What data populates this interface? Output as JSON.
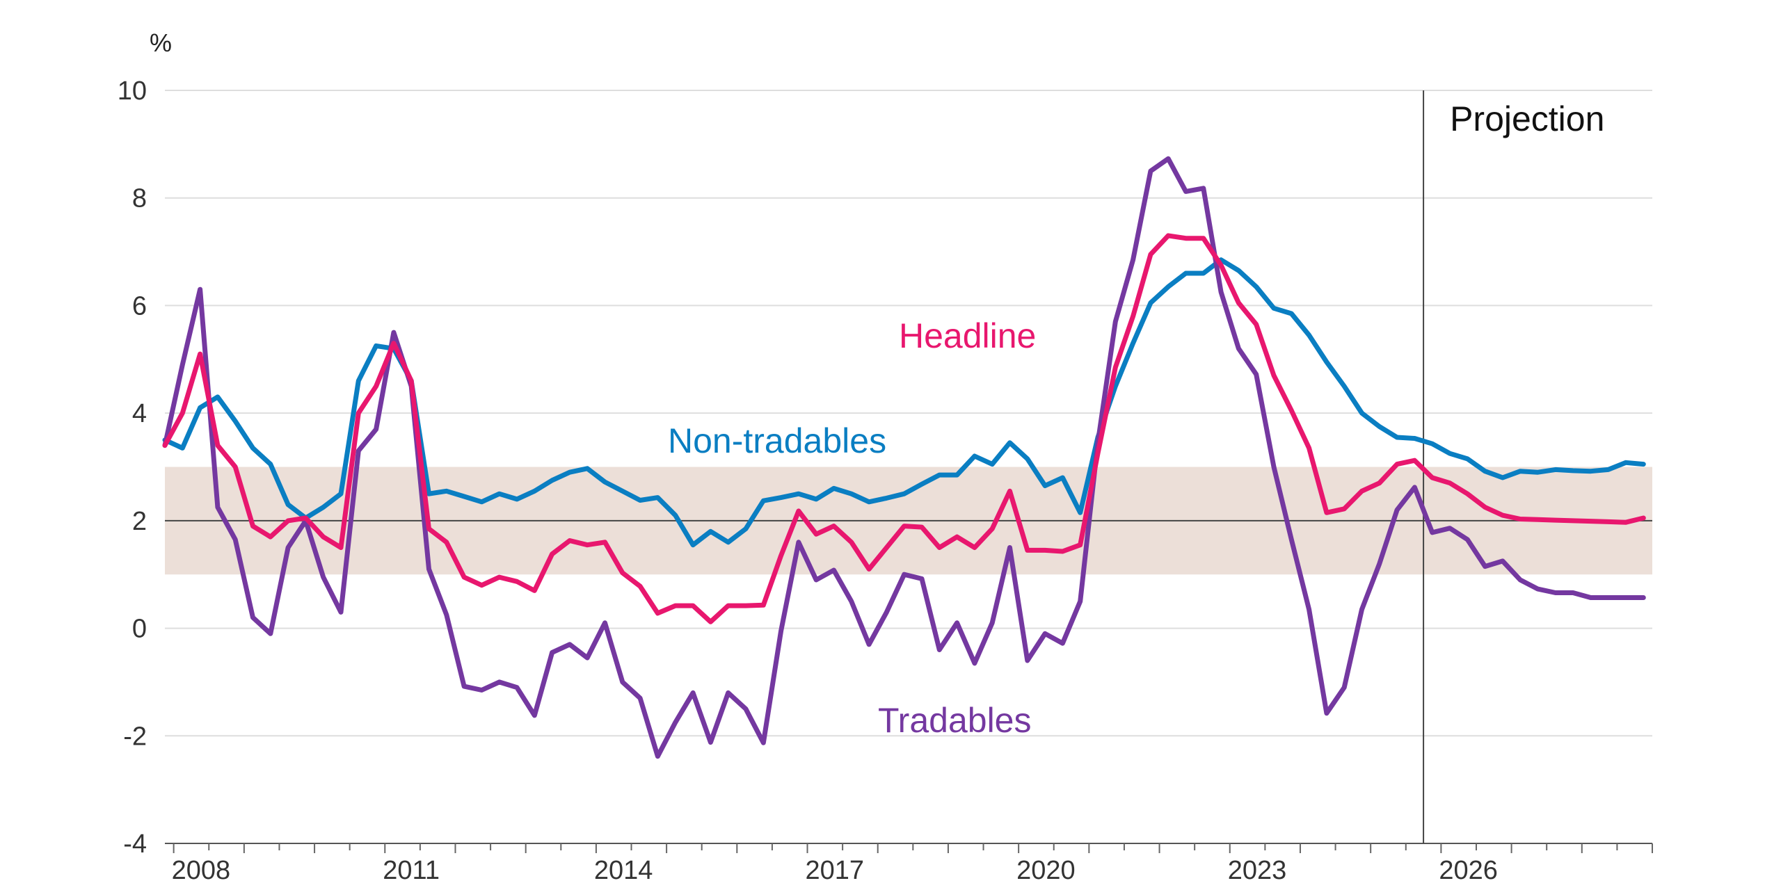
{
  "chart_data": {
    "type": "line",
    "title": "",
    "xlabel": "",
    "ylabel": "%",
    "ylim": [
      -4,
      10
    ],
    "yticks": [
      10,
      8,
      6,
      4,
      2,
      0,
      -2,
      -4
    ],
    "xlim": [
      2007.875,
      2029.0
    ],
    "xticks": [
      {
        "value": 2008.0,
        "label": "2008"
      },
      {
        "value": 2011.0,
        "label": "2011"
      },
      {
        "value": 2014.0,
        "label": "2014"
      },
      {
        "value": 2017.0,
        "label": "2017"
      },
      {
        "value": 2020.0,
        "label": "2020"
      },
      {
        "value": 2023.0,
        "label": "2023"
      },
      {
        "value": 2026.0,
        "label": "2026"
      }
    ],
    "target_band": {
      "low": 1,
      "high": 3,
      "color": "#ecdfd8"
    },
    "reference_line": 2,
    "projection": {
      "start": 2025.75,
      "label": "Projection"
    },
    "grid": "horizontal",
    "series": [
      {
        "name": "Non-tradables",
        "color": "#0a7ec2",
        "label_pos": {
          "x": 2017.0,
          "y": 3.5
        },
        "values": [
          3.5,
          3.35,
          4.1,
          4.3,
          3.85,
          3.35,
          3.05,
          2.3,
          2.05,
          2.25,
          2.5,
          4.6,
          5.25,
          5.2,
          4.6,
          2.5,
          2.55,
          2.45,
          2.35,
          2.5,
          2.4,
          2.55,
          2.75,
          2.9,
          2.97,
          2.72,
          2.55,
          2.38,
          2.43,
          2.1,
          1.55,
          1.8,
          1.6,
          1.85,
          2.37,
          2.43,
          2.5,
          2.4,
          2.6,
          2.5,
          2.35,
          2.42,
          2.5,
          2.68,
          2.85,
          2.85,
          3.2,
          3.05,
          3.45,
          3.15,
          2.65,
          2.8,
          2.15,
          3.55,
          4.5,
          5.3,
          6.05,
          6.35,
          6.6,
          6.6,
          6.85,
          6.65,
          6.35,
          5.95,
          5.85,
          5.45,
          4.95,
          4.5,
          4.0,
          3.75,
          3.55,
          3.53,
          3.43,
          3.25,
          3.15,
          2.92,
          2.8,
          2.92,
          2.9,
          2.95,
          2.93,
          2.92,
          2.95,
          3.08,
          3.05
        ]
      },
      {
        "name": "Headline",
        "color": "#e8176e",
        "label_pos": {
          "x": 2017.0,
          "y": 5.45
        },
        "values": [
          3.4,
          4.0,
          5.1,
          3.4,
          3.0,
          1.9,
          1.7,
          2.0,
          2.05,
          1.7,
          1.5,
          4.0,
          4.5,
          5.3,
          4.6,
          1.85,
          1.6,
          0.95,
          0.8,
          0.95,
          0.87,
          0.7,
          1.38,
          1.63,
          1.55,
          1.6,
          1.03,
          0.78,
          0.28,
          0.42,
          0.42,
          0.12,
          0.42,
          0.42,
          0.43,
          1.35,
          2.18,
          1.75,
          1.9,
          1.6,
          1.1,
          1.5,
          1.9,
          1.88,
          1.5,
          1.7,
          1.5,
          1.85,
          2.55,
          1.45,
          1.45,
          1.43,
          1.55,
          3.25,
          4.85,
          5.8,
          6.95,
          7.3,
          7.25,
          7.25,
          6.75,
          6.05,
          5.65,
          4.7,
          4.05,
          3.35,
          2.15,
          2.22,
          2.55,
          2.7,
          3.05,
          3.12,
          2.8,
          2.7,
          2.5,
          2.25,
          2.1,
          2.03,
          2.02,
          2.01,
          2.0,
          1.99,
          1.98,
          1.97,
          2.05
        ]
      },
      {
        "name": "Tradables",
        "color": "#7438a0",
        "label_pos": {
          "x": 2017.0,
          "y": -1.7
        },
        "values": [
          3.4,
          4.9,
          6.3,
          2.25,
          1.65,
          0.2,
          -0.1,
          1.5,
          2.0,
          0.95,
          0.3,
          3.3,
          3.7,
          5.5,
          4.5,
          1.1,
          0.25,
          -1.08,
          -1.15,
          -1.0,
          -1.1,
          -1.62,
          -0.45,
          -0.3,
          -0.55,
          0.1,
          -1.0,
          -1.3,
          -2.38,
          -1.75,
          -1.2,
          -2.12,
          -1.2,
          -1.5,
          -2.13,
          -0.05,
          1.6,
          0.9,
          1.08,
          0.5,
          -0.3,
          0.3,
          1.0,
          0.92,
          -0.4,
          0.1,
          -0.65,
          0.1,
          1.5,
          -0.6,
          -0.1,
          -0.28,
          0.5,
          3.45,
          5.7,
          6.85,
          8.5,
          8.73,
          8.12,
          8.18,
          6.25,
          5.2,
          4.72,
          3.0,
          1.65,
          0.35,
          -1.58,
          -1.1,
          0.35,
          1.2,
          2.2,
          2.62,
          1.78,
          1.86,
          1.65,
          1.15,
          1.25,
          0.9,
          0.73,
          0.66,
          0.66,
          0.57,
          0.57,
          0.57,
          0.57
        ]
      }
    ]
  }
}
